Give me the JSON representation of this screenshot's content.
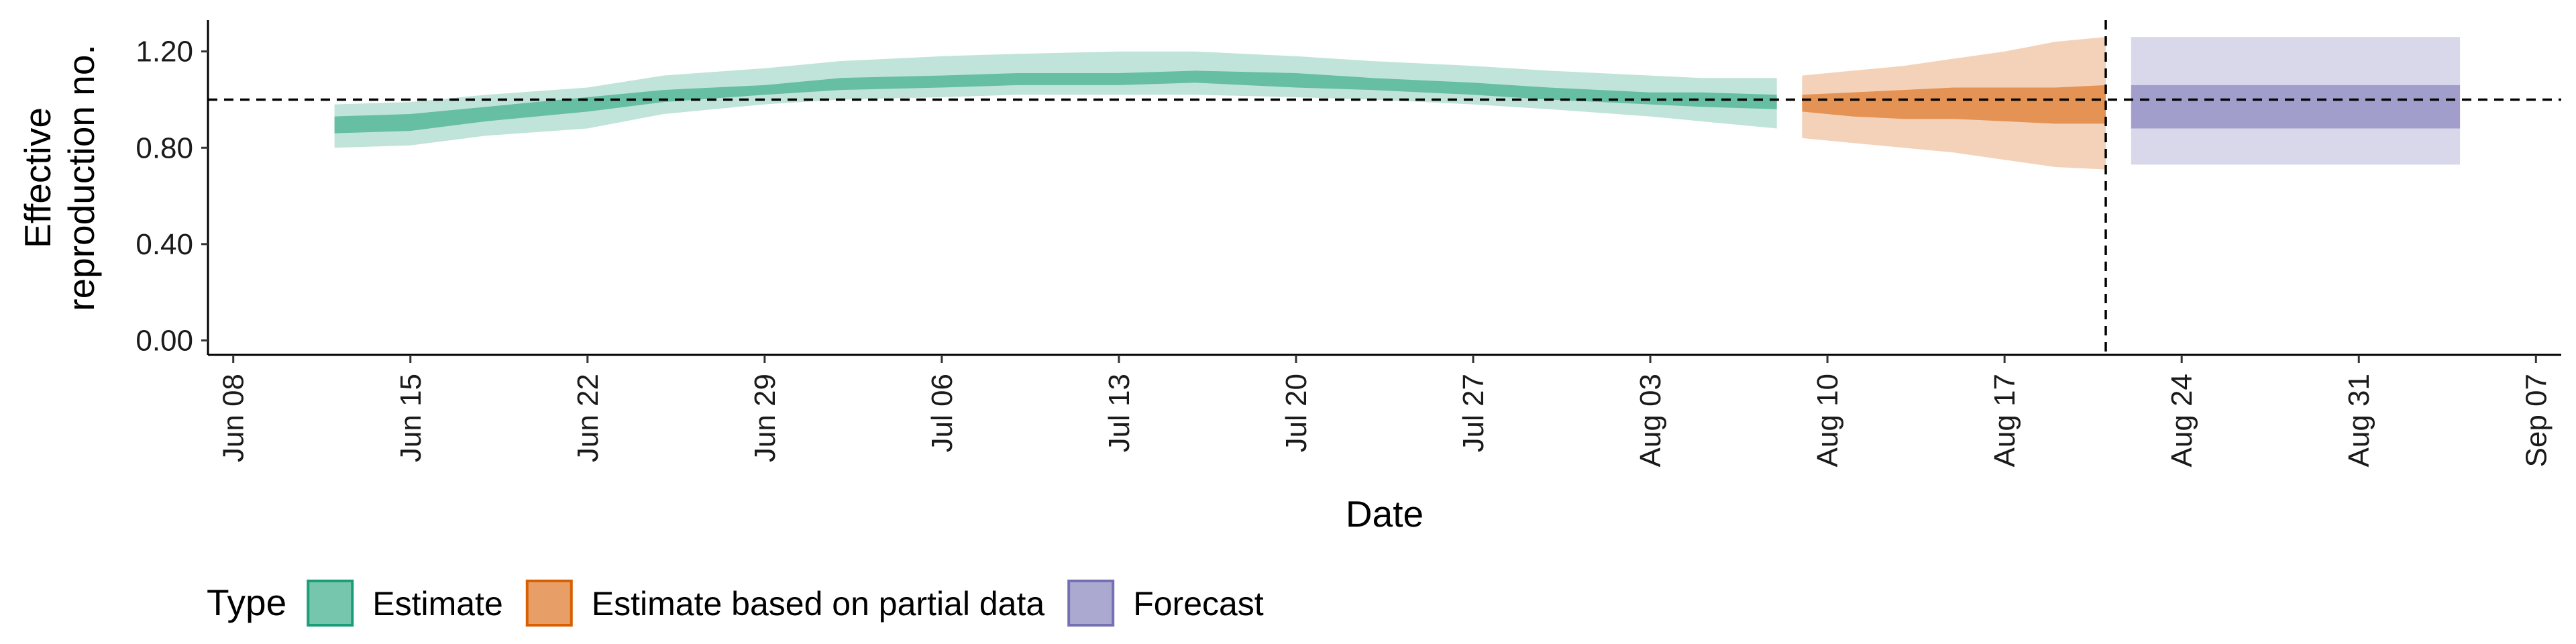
{
  "chart_data": {
    "type": "area",
    "title": "",
    "xlabel": "Date",
    "ylabel_lines": [
      "Effective",
      "reproduction no."
    ],
    "xlim": [
      "2020-06-07",
      "2020-09-08"
    ],
    "ylim": [
      -0.06,
      1.33
    ],
    "x_ticks": [
      "Jun 08",
      "Jun 15",
      "Jun 22",
      "Jun 29",
      "Jul 06",
      "Jul 13",
      "Jul 20",
      "Jul 27",
      "Aug 03",
      "Aug 10",
      "Aug 17",
      "Aug 24",
      "Aug 31",
      "Sep 07"
    ],
    "x_tick_dates": [
      "2020-06-08",
      "2020-06-15",
      "2020-06-22",
      "2020-06-29",
      "2020-07-06",
      "2020-07-13",
      "2020-07-20",
      "2020-07-27",
      "2020-08-03",
      "2020-08-10",
      "2020-08-17",
      "2020-08-24",
      "2020-08-31",
      "2020-09-07"
    ],
    "y_ticks": [
      0.0,
      0.4,
      0.8,
      1.2
    ],
    "y_tick_labels": [
      "0.00",
      "0.40",
      "0.80",
      "1.20"
    ],
    "reference_lines": {
      "horizontal_y": 1.0,
      "vertical_x": "2020-08-21"
    },
    "series": [
      {
        "name": "Estimate",
        "color": "#1b9e77",
        "x": [
          "2020-06-12",
          "2020-06-15",
          "2020-06-18",
          "2020-06-22",
          "2020-06-25",
          "2020-06-29",
          "2020-07-02",
          "2020-07-06",
          "2020-07-09",
          "2020-07-13",
          "2020-07-16",
          "2020-07-20",
          "2020-07-23",
          "2020-07-27",
          "2020-07-30",
          "2020-08-03",
          "2020-08-05",
          "2020-08-08"
        ],
        "lower90": [
          0.8,
          0.81,
          0.85,
          0.88,
          0.94,
          0.98,
          1.0,
          1.01,
          1.02,
          1.02,
          1.02,
          1.01,
          1.0,
          0.98,
          0.96,
          0.93,
          0.91,
          0.88
        ],
        "lower50": [
          0.86,
          0.87,
          0.91,
          0.95,
          0.99,
          1.02,
          1.04,
          1.05,
          1.06,
          1.06,
          1.07,
          1.05,
          1.04,
          1.02,
          1.0,
          0.98,
          0.97,
          0.96
        ],
        "upper50": [
          0.93,
          0.94,
          0.97,
          1.01,
          1.04,
          1.06,
          1.09,
          1.1,
          1.11,
          1.11,
          1.12,
          1.11,
          1.09,
          1.07,
          1.05,
          1.03,
          1.03,
          1.02
        ],
        "upper90": [
          0.98,
          0.99,
          1.02,
          1.05,
          1.1,
          1.13,
          1.16,
          1.18,
          1.19,
          1.2,
          1.2,
          1.18,
          1.16,
          1.14,
          1.12,
          1.1,
          1.09,
          1.09
        ]
      },
      {
        "name": "Estimate based on partial data",
        "color": "#d95f02",
        "x": [
          "2020-08-09",
          "2020-08-11",
          "2020-08-13",
          "2020-08-15",
          "2020-08-17",
          "2020-08-19",
          "2020-08-21"
        ],
        "lower90": [
          0.84,
          0.82,
          0.8,
          0.78,
          0.75,
          0.72,
          0.71
        ],
        "lower50": [
          0.95,
          0.93,
          0.92,
          0.92,
          0.91,
          0.9,
          0.9
        ],
        "upper50": [
          1.02,
          1.03,
          1.04,
          1.05,
          1.05,
          1.05,
          1.06
        ],
        "upper90": [
          1.1,
          1.12,
          1.14,
          1.17,
          1.2,
          1.24,
          1.26
        ]
      },
      {
        "name": "Forecast",
        "color": "#7570b3",
        "x": [
          "2020-08-22",
          "2020-09-04"
        ],
        "lower90": [
          0.73,
          0.73
        ],
        "lower50": [
          0.88,
          0.88
        ],
        "upper50": [
          1.06,
          1.06
        ],
        "upper90": [
          1.26,
          1.26
        ]
      }
    ],
    "legend": {
      "title": "Type",
      "position": "bottom-left",
      "entries": [
        {
          "label": "Estimate",
          "fill": "#1b9e77",
          "border": "#1b9e77"
        },
        {
          "label": "Estimate based on partial data",
          "fill": "#d95f02",
          "border": "#d95f02"
        },
        {
          "label": "Forecast",
          "fill": "#7570b3",
          "border": "#7570b3"
        }
      ]
    }
  }
}
